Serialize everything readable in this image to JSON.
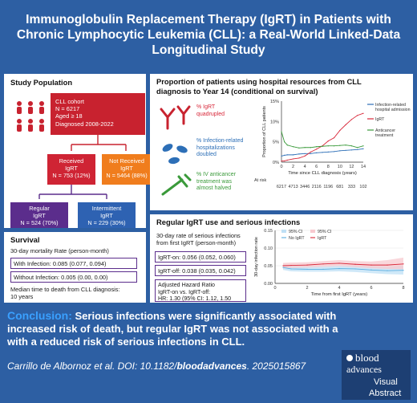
{
  "header": {
    "title": "Immunoglobulin Replacement Therapy (IgRT) in Patients with Chronic Lymphocytic Leukemia (CLL): a Real-World Linked-Data Longitudinal Study"
  },
  "study_population": {
    "title": "Study Population",
    "cohort_lines": [
      "CLL cohort",
      "N = 6217",
      "Aged ≥ 18",
      "Diagnosed 2008-2022"
    ],
    "received_lines": [
      "Received",
      "IgRT",
      "N = 753 (12%)"
    ],
    "not_received_lines": [
      "Not Received",
      "IgRT",
      "N = 5464 (88%)"
    ],
    "regular_lines": [
      "Regular",
      "IgRT",
      "N = 524 (70%)"
    ],
    "intermittent_lines": [
      "Intermittent",
      "IgRT",
      "N = 229 (30%)"
    ]
  },
  "survival": {
    "title": "Survival",
    "subtitle": "30-day mortality Rate (person-month)",
    "with_infection": "With Infection: 0.085 (0.077, 0.094)",
    "without_infection": "Without Infection: 0.005 (0.00, 0.00)",
    "median_line1": "Median time to death from CLL diagnosis:",
    "median_line2": "10 years"
  },
  "proportion": {
    "title_line1": "Proportion of patients using hospital resources from CLL",
    "title_line2": "diagnosis to Year 14 (conditional on survival)",
    "items": [
      {
        "lines": [
          "% IgRT",
          "quadrupled"
        ],
        "color": "#d8283a"
      },
      {
        "lines": [
          "% Infection-related",
          "hospitalizations",
          "doubled"
        ],
        "color": "#2d6fb7"
      },
      {
        "lines": [
          "% IV anticancer",
          "treatment was",
          "almost halved"
        ],
        "color": "#3a9a3a"
      }
    ],
    "at_risk_label": "At risk",
    "at_risk_values": [
      "6217",
      "4713",
      "3446",
      "2116",
      "1196",
      "681",
      "333",
      "102"
    ]
  },
  "chart_data": [
    {
      "type": "line",
      "title": "",
      "xlabel": "Time since CLL diagnosis (years)",
      "ylabel": "Proportion of CLL patients",
      "xlim": [
        0,
        14
      ],
      "ylim": [
        0,
        15
      ],
      "x_ticks": [
        "0",
        "2",
        "4",
        "6",
        "8",
        "10",
        "12",
        "14"
      ],
      "y_ticks": [
        "0%",
        "5%",
        "10%",
        "15%"
      ],
      "legend_position": "right",
      "series": [
        {
          "name": "Infection-related hospital admission",
          "color": "#2d6fb7",
          "x": [
            0,
            0.5,
            1,
            2,
            3,
            4,
            5,
            6,
            7,
            8,
            9,
            10,
            11,
            12,
            13,
            14
          ],
          "values": [
            1.5,
            1.7,
            1.8,
            1.8,
            2.0,
            2.1,
            2.1,
            2.3,
            2.4,
            2.5,
            2.6,
            2.8,
            2.9,
            3.0,
            3.1,
            3.3
          ]
        },
        {
          "name": "IgRT",
          "color": "#d8283a",
          "x": [
            0,
            0.5,
            1,
            2,
            3,
            4,
            5,
            6,
            7,
            8,
            9,
            10,
            11,
            12,
            13,
            14
          ],
          "values": [
            0.3,
            0.3,
            0.5,
            0.8,
            1.0,
            1.5,
            2.5,
            3.2,
            4.0,
            5.2,
            6.0,
            7.8,
            9.2,
            10.5,
            11.5,
            12.0
          ]
        },
        {
          "name": "Anticancer treatment",
          "color": "#3a9a3a",
          "x": [
            0,
            0.5,
            1,
            2,
            3,
            4,
            5,
            6,
            7,
            8,
            9,
            10,
            11,
            12,
            13,
            14
          ],
          "values": [
            7.5,
            5.0,
            4.2,
            3.8,
            3.5,
            3.6,
            3.6,
            3.8,
            3.9,
            4.0,
            4.0,
            4.1,
            4.2,
            4.0,
            3.6,
            4.0
          ]
        }
      ]
    },
    {
      "type": "line",
      "title": "",
      "xlabel": "Time from first IgRT (years)",
      "ylabel": "30-day infection rate",
      "xlim": [
        0,
        8
      ],
      "ylim": [
        0,
        0.15
      ],
      "x_ticks": [
        "0",
        "2",
        "4",
        "6",
        "8"
      ],
      "y_ticks": [
        "0.00",
        "0.05",
        "0.10",
        "0.15"
      ],
      "legend_position": "top-left",
      "series": [
        {
          "name": "No IgRT",
          "color": "#5aaee0",
          "x": [
            0.5,
            1,
            2,
            3,
            4,
            5,
            6,
            7,
            8
          ],
          "values": [
            0.045,
            0.041,
            0.04,
            0.04,
            0.042,
            0.041,
            0.038,
            0.036,
            0.037
          ],
          "ci_lower": [
            0.038,
            0.034,
            0.033,
            0.033,
            0.034,
            0.032,
            0.029,
            0.026,
            0.025
          ],
          "ci_upper": [
            0.053,
            0.049,
            0.048,
            0.048,
            0.05,
            0.05,
            0.048,
            0.047,
            0.05
          ]
        },
        {
          "name": "IgRT",
          "color": "#d8283a",
          "x": [
            0.5,
            1,
            2,
            3,
            4,
            5,
            6,
            7,
            8
          ],
          "values": [
            0.05,
            0.051,
            0.052,
            0.055,
            0.057,
            0.054,
            0.052,
            0.052,
            0.055
          ],
          "ci_lower": [
            0.042,
            0.044,
            0.045,
            0.047,
            0.049,
            0.046,
            0.043,
            0.041,
            0.04
          ],
          "ci_upper": [
            0.058,
            0.059,
            0.06,
            0.063,
            0.066,
            0.063,
            0.062,
            0.066,
            0.073
          ]
        }
      ],
      "legend_entries": [
        "95% CI",
        "No IgRT",
        "95% CI",
        "IgRT"
      ]
    }
  ],
  "regular": {
    "title": "Regular IgRT use and serious infections",
    "text_line1": "30-day rate of serious infections",
    "text_line2": "from first IgRT (person-month)",
    "igrt_on": "IgRT-on: 0.056 (0.052, 0.060)",
    "igrt_off": "IgRT-off: 0.038 (0.035, 0.042)",
    "hr_lines": [
      "Adjusted Hazard Ratio",
      "IgRT-on vs. IgRT-off:",
      "HR: 1.30 (95% CI: 1.12, 1.50"
    ]
  },
  "conclusion": {
    "lead": "Conclusion:",
    "body": "Serious infections were significantly associated with increased risk of death, but regular IgRT was not associated with a with a reduced risk of serious infections in CLL."
  },
  "citation": {
    "prefix": "Carrillo de Albornoz et al. DOI: 10.1182/",
    "journal": "bloodadvances",
    "suffix": ". 2025015867"
  },
  "logo": {
    "line1": "blood",
    "line2": "advances",
    "line3": "Visual",
    "line4": "Abstract"
  },
  "colors": {
    "frame": "#2d5fa3",
    "cohort": "#c8222f",
    "received": "#cf2434",
    "not_received": "#f07d1d",
    "regular": "#5b2d8c",
    "intermittent": "#2e62b2",
    "conclusion_lead": "#3aa0ff"
  }
}
